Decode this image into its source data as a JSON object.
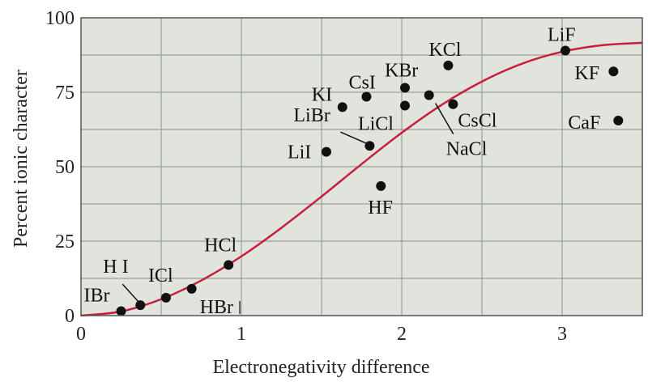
{
  "chart_data": {
    "type": "scatter",
    "xlabel": "Electronegativity difference",
    "ylabel": "Percent ionic character",
    "xlim": [
      0,
      3.5
    ],
    "ylim": [
      0,
      100
    ],
    "x_ticks": [
      0,
      1,
      2,
      3
    ],
    "y_ticks": [
      0,
      25,
      50,
      75,
      100
    ],
    "grid": true,
    "background_color": "#e0e4dd",
    "curve_color": "#c81e3c",
    "point_color": "#111111",
    "curve": {
      "name": "",
      "x": [
        0,
        0.25,
        0.5,
        0.75,
        1.0,
        1.25,
        1.5,
        1.75,
        2.0,
        2.25,
        2.5,
        2.75,
        3.0,
        3.25,
        3.5
      ],
      "y": [
        0,
        1.4,
        5.5,
        11.8,
        19.9,
        29.5,
        40.0,
        50.9,
        61.4,
        70.8,
        78.6,
        84.6,
        88.6,
        90.8,
        91.6
      ]
    },
    "points": [
      {
        "label": "IBr",
        "x": 0.25,
        "y": 1.5
      },
      {
        "label": "H I",
        "x": 0.37,
        "y": 3.5
      },
      {
        "label": "ICl",
        "x": 0.53,
        "y": 6
      },
      {
        "label": "HBr",
        "x": 0.69,
        "y": 9
      },
      {
        "label": "HCl",
        "x": 0.92,
        "y": 17
      },
      {
        "label": "LiI",
        "x": 1.53,
        "y": 55
      },
      {
        "label": "KI",
        "x": 1.63,
        "y": 70
      },
      {
        "label": "CsI",
        "x": 1.78,
        "y": 73.5
      },
      {
        "label": "LiBr",
        "x": 1.8,
        "y": 57
      },
      {
        "label": "HF",
        "x": 1.87,
        "y": 43.5
      },
      {
        "label": "LiCl",
        "x": 2.02,
        "y": 70.5
      },
      {
        "label": "KBr",
        "x": 2.02,
        "y": 76.5
      },
      {
        "label": "NaCl",
        "x": 2.17,
        "y": 74
      },
      {
        "label": "KCl",
        "x": 2.29,
        "y": 84
      },
      {
        "label": "CsCl",
        "x": 2.32,
        "y": 71
      },
      {
        "label": "LiF",
        "x": 3.02,
        "y": 89
      },
      {
        "label": "KF",
        "x": 3.32,
        "y": 82
      },
      {
        "label": "CaF",
        "x": 3.35,
        "y": 65.5
      }
    ]
  }
}
